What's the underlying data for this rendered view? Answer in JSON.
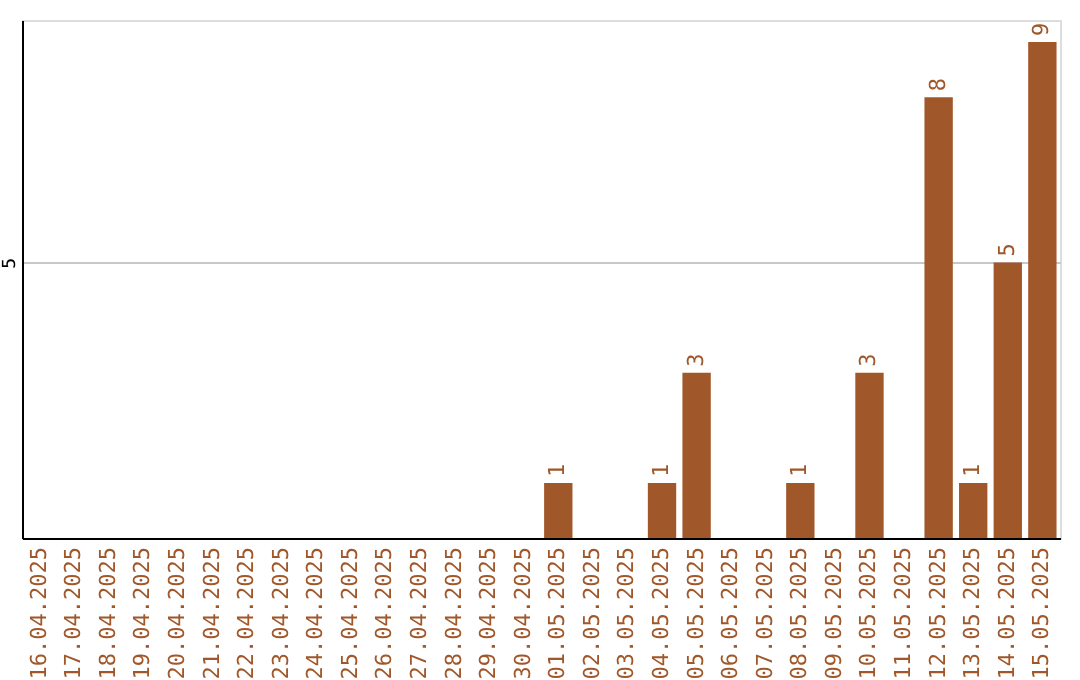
{
  "chart_data": {
    "type": "bar",
    "categories": [
      "16.04.2025",
      "17.04.2025",
      "18.04.2025",
      "19.04.2025",
      "20.04.2025",
      "21.04.2025",
      "22.04.2025",
      "23.04.2025",
      "24.04.2025",
      "25.04.2025",
      "26.04.2025",
      "27.04.2025",
      "28.04.2025",
      "29.04.2025",
      "30.04.2025",
      "01.05.2025",
      "02.05.2025",
      "03.05.2025",
      "04.05.2025",
      "05.05.2025",
      "06.05.2025",
      "07.05.2025",
      "08.05.2025",
      "09.05.2025",
      "10.05.2025",
      "11.05.2025",
      "12.05.2025",
      "13.05.2025",
      "14.05.2025",
      "15.05.2025"
    ],
    "values": [
      null,
      null,
      null,
      null,
      null,
      null,
      null,
      null,
      null,
      null,
      null,
      null,
      null,
      null,
      null,
      1,
      null,
      null,
      1,
      3,
      null,
      null,
      1,
      null,
      3,
      null,
      8,
      1,
      5,
      9
    ],
    "color": "#a0572a",
    "ylim": [
      0,
      9.4
    ],
    "yticks": [
      5
    ],
    "grid": "y",
    "data_labels": true
  }
}
